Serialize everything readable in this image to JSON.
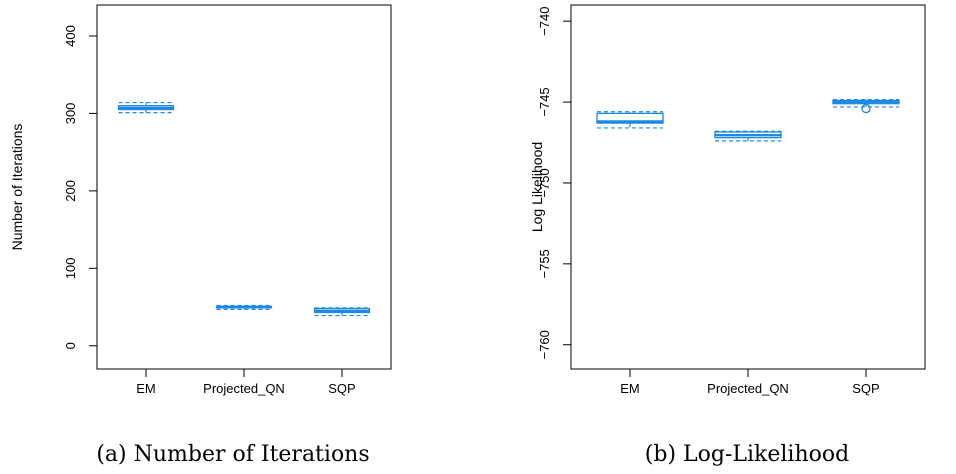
{
  "colors": {
    "box": "#1e88e5",
    "frame": "#000000"
  },
  "chart_data": [
    {
      "type": "boxplot",
      "caption": "(a) Number of Iterations",
      "xlabel": "",
      "ylabel": "Number of Iterations",
      "categories": [
        "EM",
        "Projected_QN",
        "SQP"
      ],
      "ylim": [
        -30,
        440
      ],
      "yticks": [
        0,
        100,
        200,
        300,
        400
      ],
      "series": [
        {
          "min": 301,
          "q1": 305,
          "median": 307,
          "q3": 310,
          "max": 314,
          "outliers": []
        },
        {
          "min": 47,
          "q1": 49,
          "median": 50,
          "q3": 51,
          "max": 52,
          "outliers": []
        },
        {
          "min": 39,
          "q1": 43,
          "median": 45,
          "q3": 48,
          "max": 49,
          "outliers": []
        }
      ]
    },
    {
      "type": "boxplot",
      "caption": "(b) Log-Likelihood",
      "xlabel": "",
      "ylabel": "Log Likelihood",
      "categories": [
        "EM",
        "Projected_QN",
        "SQP"
      ],
      "ylim": [
        -761.5,
        -739
      ],
      "yticks": [
        -760,
        -755,
        -750,
        -745,
        -740
      ],
      "ytick_labels": [
        "−760",
        "−755",
        "−750",
        "−745",
        "−740"
      ],
      "series": [
        {
          "min": -746.6,
          "q1": -746.3,
          "median": -746.2,
          "q3": -745.7,
          "max": -745.6,
          "outliers": []
        },
        {
          "min": -747.4,
          "q1": -747.2,
          "median": -747.05,
          "q3": -746.85,
          "max": -746.8,
          "outliers": []
        },
        {
          "min": -745.3,
          "q1": -745.1,
          "median": -745.0,
          "q3": -744.9,
          "max": -744.85,
          "outliers": [
            -745.4
          ]
        }
      ]
    }
  ]
}
